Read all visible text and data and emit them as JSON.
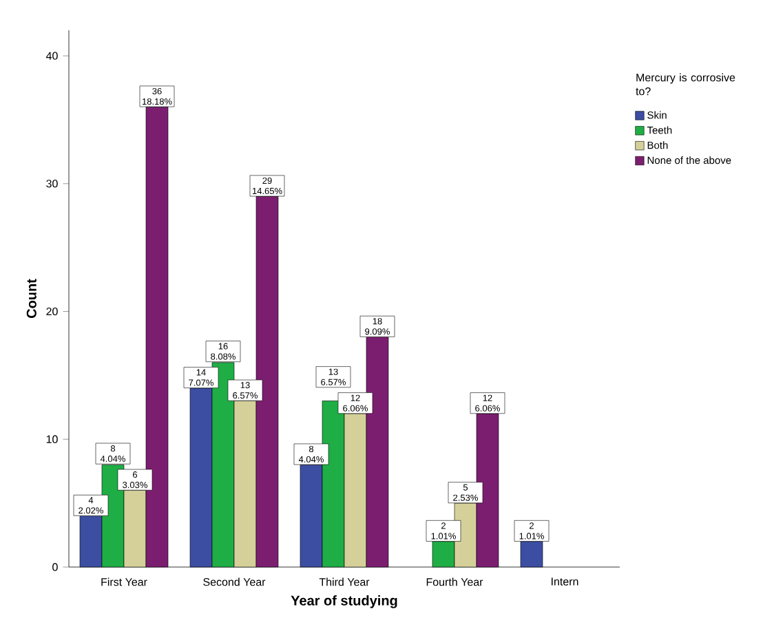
{
  "chart_data": {
    "type": "bar",
    "xlabel": "Year of studying",
    "ylabel": "Count",
    "legend_title": "Mercury is corrosive to?",
    "categories": [
      "First Year",
      "Second Year",
      "Third Year",
      "Fourth Year",
      "Intern"
    ],
    "series": [
      {
        "name": "Skin",
        "color": "#3b4ea2",
        "values": [
          4,
          14,
          8,
          null,
          2
        ],
        "value_labels": [
          "4 2.02%",
          "14 7.07%",
          "8 4.04%",
          null,
          "2 1.01%"
        ]
      },
      {
        "name": "Teeth",
        "color": "#1fae45",
        "values": [
          8,
          16,
          13,
          2,
          null
        ],
        "value_labels": [
          "8 4.04%",
          "16 8.08%",
          "13 6.57%",
          "2 1.01%",
          null
        ]
      },
      {
        "name": "Both",
        "color": "#d5d09a",
        "values": [
          6,
          13,
          12,
          5,
          null
        ],
        "value_labels": [
          "6 3.03%",
          "13 6.57%",
          "12 6.06%",
          "5 2.53%",
          null
        ]
      },
      {
        "name": "None of the above",
        "color": "#7b1e70",
        "values": [
          36,
          29,
          18,
          12,
          null
        ],
        "value_labels": [
          "36 18.18%",
          "29 14.65%",
          "18 9.09%",
          "12 6.06%",
          null
        ]
      }
    ],
    "ylim": [
      0,
      42
    ],
    "yticks": [
      0,
      10,
      20,
      30,
      40
    ],
    "grid": false,
    "legend": "right"
  }
}
